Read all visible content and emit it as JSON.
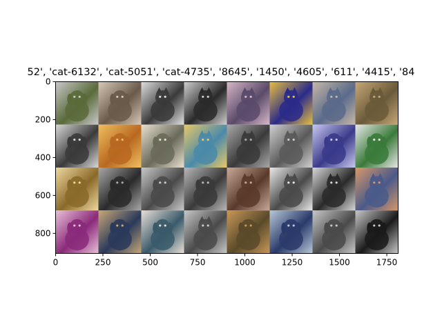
{
  "figure": {
    "title": "52', 'cat-6132', 'cat-5051', 'cat-4735', '8645', '1450', '4605', '611', '4415', '84"
  },
  "chart_data": {
    "type": "image-grid",
    "grid": {
      "rows": 4,
      "cols": 8
    },
    "xlim": [
      0,
      1810
    ],
    "ylim": [
      906,
      0
    ],
    "xticks": [
      0,
      250,
      500,
      750,
      1000,
      1250,
      1500,
      1750
    ],
    "yticks": [
      0,
      200,
      400,
      600,
      800
    ],
    "tiles": [
      {
        "subject": "dog",
        "tone": [
          "#5a6a3a",
          "#c9c9c9"
        ]
      },
      {
        "subject": "dog",
        "tone": [
          "#6a5a4a",
          "#d8c8b8"
        ]
      },
      {
        "subject": "cat",
        "tone": [
          "#3a3a3a",
          "#e0e0e0"
        ]
      },
      {
        "subject": "cat",
        "tone": [
          "#2a2a2a",
          "#cfcfcf"
        ]
      },
      {
        "subject": "cat",
        "tone": [
          "#5a4a6a",
          "#d8b8c8"
        ]
      },
      {
        "subject": "cat",
        "tone": [
          "#2a2a8a",
          "#e8c040"
        ]
      },
      {
        "subject": "cat",
        "tone": [
          "#5a6a8a",
          "#c8b8a8"
        ]
      },
      {
        "subject": "cat",
        "tone": [
          "#6a5a3a",
          "#c8a878"
        ]
      },
      {
        "subject": "dog",
        "tone": [
          "#3a3a3a",
          "#d8d8d8"
        ]
      },
      {
        "subject": "dog",
        "tone": [
          "#b86820",
          "#f0c060"
        ]
      },
      {
        "subject": "dog",
        "tone": [
          "#6a6a5a",
          "#e8e0d0"
        ]
      },
      {
        "subject": "cat",
        "tone": [
          "#4a8aa8",
          "#e8c868"
        ]
      },
      {
        "subject": "cat",
        "tone": [
          "#3a3a3a",
          "#a8a8a8"
        ]
      },
      {
        "subject": "cat",
        "tone": [
          "#5a5a5a",
          "#d0d0d0"
        ]
      },
      {
        "subject": "dog",
        "tone": [
          "#3a3a8a",
          "#c8c8f0"
        ]
      },
      {
        "subject": "dog",
        "tone": [
          "#3a7a3a",
          "#e8e8e8"
        ]
      },
      {
        "subject": "dog",
        "tone": [
          "#8a6a2a",
          "#f0d8a0"
        ]
      },
      {
        "subject": "dog",
        "tone": [
          "#2a2a2a",
          "#a8a8a8"
        ]
      },
      {
        "subject": "dog",
        "tone": [
          "#4a4a4a",
          "#c8c8c8"
        ]
      },
      {
        "subject": "dog",
        "tone": [
          "#3a3a3a",
          "#b8b8b8"
        ]
      },
      {
        "subject": "cat",
        "tone": [
          "#5a3a2a",
          "#c8a898"
        ]
      },
      {
        "subject": "cat",
        "tone": [
          "#4a4a4a",
          "#e8e8e8"
        ]
      },
      {
        "subject": "cat",
        "tone": [
          "#2a2a2a",
          "#d8d8d8"
        ]
      },
      {
        "subject": "cat",
        "tone": [
          "#4a5a8a",
          "#d89868"
        ]
      },
      {
        "subject": "dog",
        "tone": [
          "#8a2a7a",
          "#e8c0d8"
        ]
      },
      {
        "subject": "dog",
        "tone": [
          "#2a3a5a",
          "#c8a878"
        ]
      },
      {
        "subject": "dog",
        "tone": [
          "#3a5a6a",
          "#e8e0d8"
        ]
      },
      {
        "subject": "cat",
        "tone": [
          "#4a4a4a",
          "#c8c8c8"
        ]
      },
      {
        "subject": "dog",
        "tone": [
          "#5a4a2a",
          "#c89858"
        ]
      },
      {
        "subject": "dog",
        "tone": [
          "#2a3a6a",
          "#b8c8d8"
        ]
      },
      {
        "subject": "dog",
        "tone": [
          "#4a4a4a",
          "#c8c8c8"
        ]
      },
      {
        "subject": "dog",
        "tone": [
          "#1a1a1a",
          "#c8c8c8"
        ]
      }
    ]
  }
}
